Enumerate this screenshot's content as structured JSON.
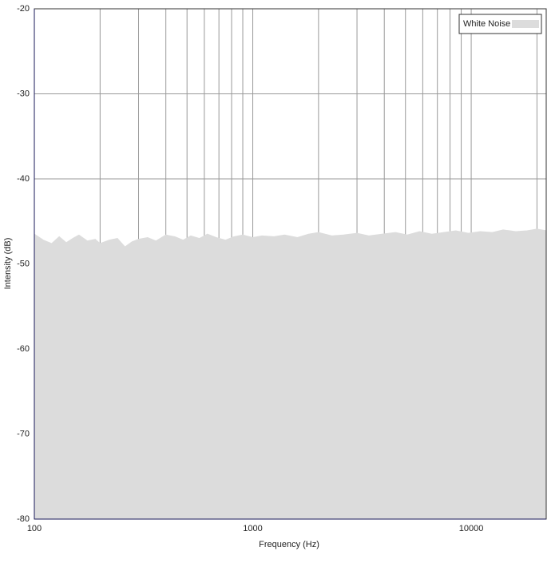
{
  "chart_data": {
    "type": "area",
    "xlabel": "Frequency (Hz)",
    "ylabel": "Intensity (dB)",
    "x": [
      100,
      110,
      120,
      130,
      140,
      150,
      160,
      175,
      190,
      200,
      220,
      240,
      260,
      280,
      300,
      330,
      360,
      400,
      440,
      480,
      520,
      570,
      620,
      680,
      750,
      820,
      900,
      1000,
      1100,
      1250,
      1400,
      1600,
      1800,
      2000,
      2300,
      2600,
      3000,
      3400,
      3900,
      4500,
      5100,
      5800,
      6600,
      7500,
      8500,
      9700,
      11000,
      12500,
      14000,
      16000,
      18000,
      20000,
      22050
    ],
    "series": [
      {
        "name": "White Noise",
        "color": "#dcdcdc",
        "values": [
          -46.5,
          -47.2,
          -47.6,
          -46.8,
          -47.5,
          -47.0,
          -46.6,
          -47.3,
          -47.1,
          -47.6,
          -47.2,
          -47.0,
          -48.0,
          -47.4,
          -47.1,
          -46.9,
          -47.3,
          -46.6,
          -46.8,
          -47.2,
          -46.7,
          -47.0,
          -46.5,
          -46.9,
          -47.2,
          -46.8,
          -46.6,
          -46.9,
          -46.7,
          -46.8,
          -46.6,
          -46.9,
          -46.5,
          -46.3,
          -46.7,
          -46.6,
          -46.4,
          -46.7,
          -46.5,
          -46.3,
          -46.6,
          -46.2,
          -46.5,
          -46.3,
          -46.1,
          -46.4,
          -46.2,
          -46.3,
          -46.0,
          -46.2,
          -46.1,
          -45.9,
          -46.1
        ]
      }
    ],
    "xlim": [
      100,
      22050
    ],
    "xscale": "log",
    "xticks": [
      100,
      1000,
      10000
    ],
    "x_minor_ticks": [
      200,
      300,
      400,
      500,
      600,
      700,
      800,
      900,
      2000,
      3000,
      4000,
      5000,
      6000,
      7000,
      8000,
      9000,
      20000
    ],
    "ylim": [
      -80,
      -20
    ],
    "yticks": [
      -80,
      -70,
      -60,
      -50,
      -40,
      -30,
      -20
    ],
    "grid": true,
    "legend": "top-right"
  }
}
